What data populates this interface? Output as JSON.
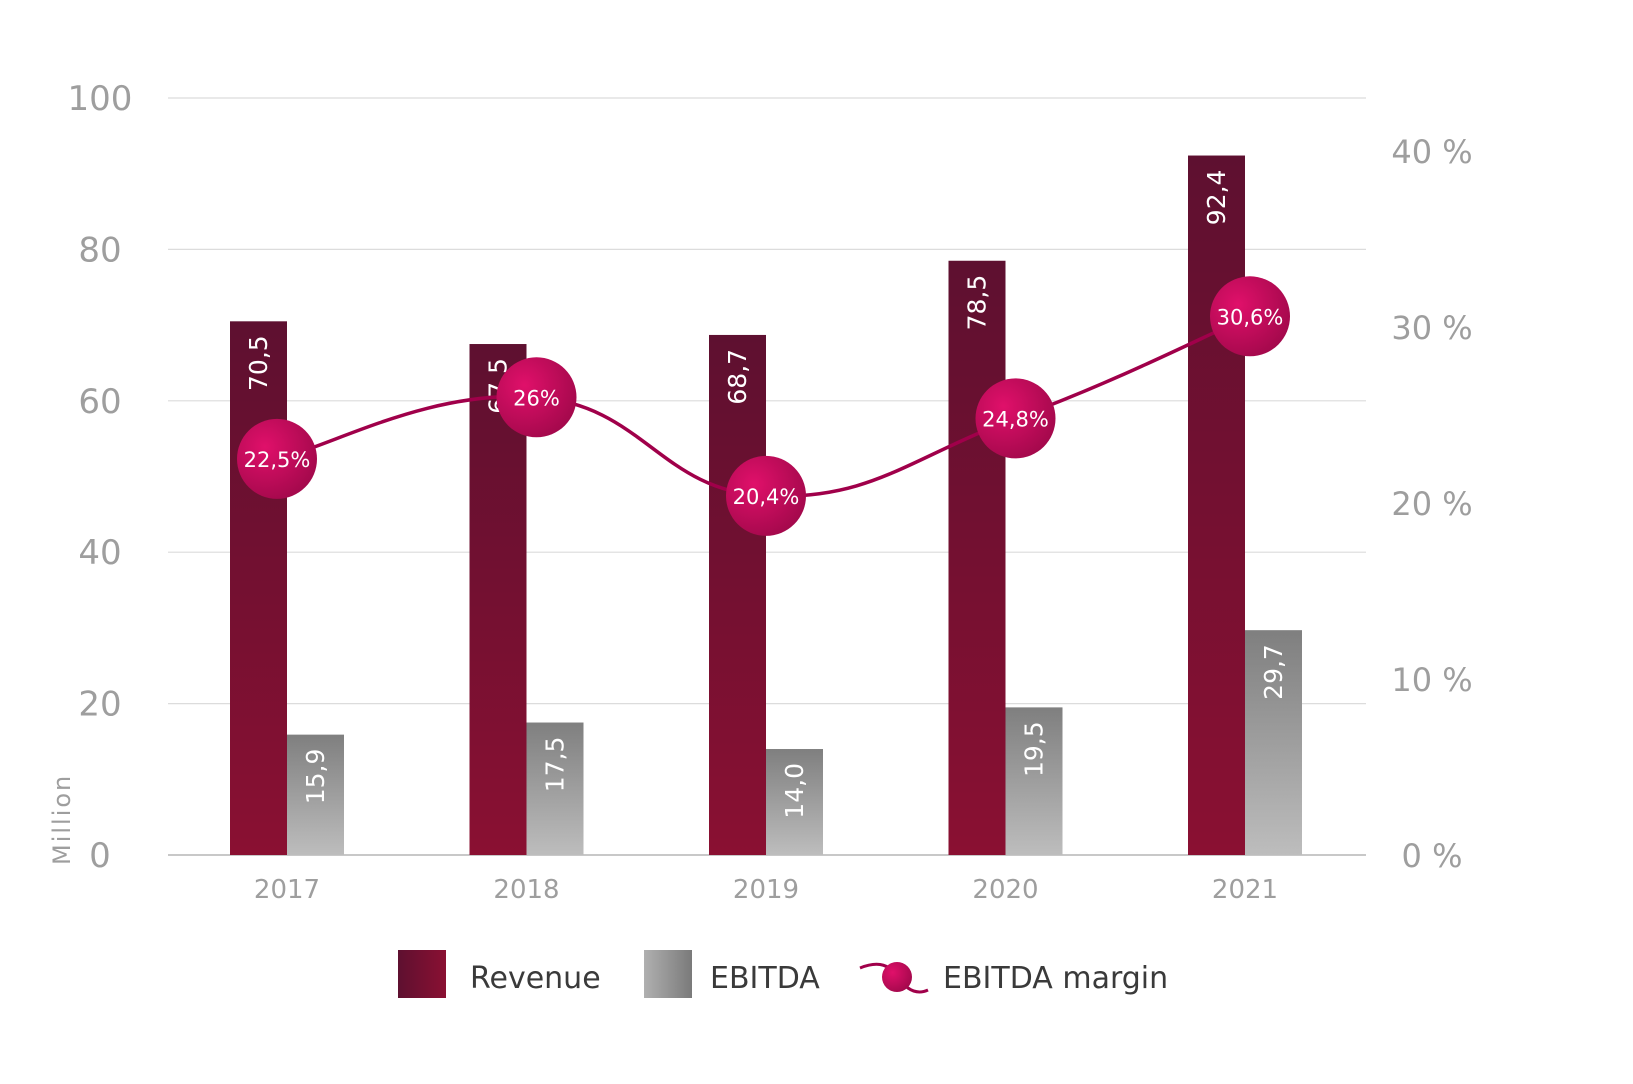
{
  "chart_data": {
    "type": "bar",
    "categories": [
      "2017",
      "2018",
      "2019",
      "2020",
      "2021"
    ],
    "ylabel": "Million",
    "ylim": [
      0,
      100
    ],
    "y_ticks": [
      "0",
      "20",
      "40",
      "60",
      "80",
      "100"
    ],
    "y2lim": [
      0,
      43
    ],
    "y2_ticks": [
      "0 %",
      "10 %",
      "20 %",
      "30 %",
      "40 %"
    ],
    "y2_tick_values": [
      0,
      10,
      20,
      30,
      40
    ],
    "grid": true,
    "legend_position": "bottom",
    "series": [
      {
        "name": "Revenue",
        "type": "bar",
        "values": [
          70.5,
          67.5,
          68.7,
          78.5,
          92.4
        ],
        "labels": [
          "70,5",
          "67,5",
          "68,7",
          "78,5",
          "92,4"
        ],
        "color": "#7a1030"
      },
      {
        "name": "EBITDA",
        "type": "bar",
        "values": [
          15.9,
          17.5,
          14.0,
          19.5,
          29.7
        ],
        "labels": [
          "15,9",
          "17,5",
          "14,0",
          "19,5",
          "29,7"
        ],
        "color": "#8c8c8c"
      },
      {
        "name": "EBITDA margin",
        "type": "line",
        "axis": "right",
        "values": [
          22.5,
          26,
          20.4,
          24.8,
          30.6
        ],
        "labels": [
          "22,5%",
          "26%",
          "20,4%",
          "24,8%",
          "30,6%"
        ],
        "color": "#a0004a"
      }
    ]
  }
}
